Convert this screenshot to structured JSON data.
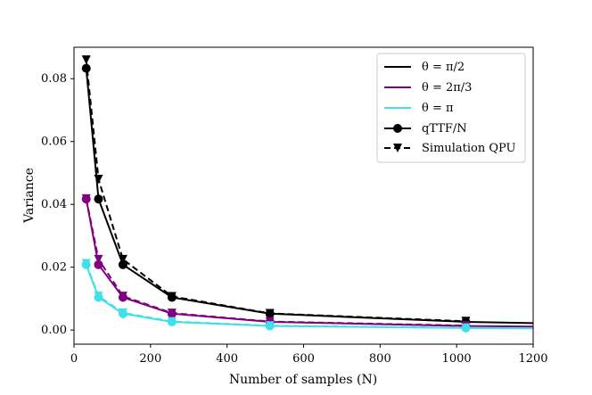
{
  "chart_data": {
    "type": "line",
    "xlabel": "Number of samples (N)",
    "ylabel": "Variance",
    "xlim": [
      0,
      1200
    ],
    "ylim": [
      -0.0045,
      0.09
    ],
    "xticks": [
      0,
      200,
      400,
      600,
      800,
      1000,
      1200
    ],
    "yticks": [
      0.0,
      0.02,
      0.04,
      0.06,
      0.08
    ],
    "xtick_labels": [
      "0",
      "200",
      "400",
      "600",
      "800",
      "1000",
      "1200"
    ],
    "ytick_labels": [
      "0.00",
      "0.02",
      "0.04",
      "0.06",
      "0.08"
    ],
    "grid": false,
    "legend_position": "top-right",
    "legend": [
      {
        "label": "θ = π/2",
        "style": "line",
        "color": "#000000"
      },
      {
        "label": "θ = 2π/3",
        "style": "line",
        "color": "#800080"
      },
      {
        "label": "θ = π",
        "style": "line",
        "color": "#40e0e8"
      },
      {
        "label": "qTTF/N",
        "style": "solid-circle",
        "color": "#000000"
      },
      {
        "label": "Simulation QPU",
        "style": "dashed-triangle",
        "color": "#000000"
      }
    ],
    "x": [
      32,
      64,
      128,
      256,
      512,
      1024,
      1200
    ],
    "series": [
      {
        "name": "θ = π/2",
        "kind": "qTTF/N",
        "color": "#000000",
        "dash": false,
        "marker": "circle",
        "values": [
          0.0833,
          0.0417,
          0.0208,
          0.0104,
          0.0052,
          0.0026,
          0.0022
        ]
      },
      {
        "name": "θ = π/2",
        "kind": "Simulation QPU",
        "color": "#000000",
        "dash": true,
        "marker": "triangle",
        "values": [
          0.086,
          0.048,
          0.0225,
          0.0107,
          0.0053,
          0.0028,
          null
        ]
      },
      {
        "name": "θ = 2π/3",
        "kind": "qTTF/N",
        "color": "#800080",
        "dash": false,
        "marker": "circle",
        "values": [
          0.0417,
          0.0208,
          0.0104,
          0.0052,
          0.0026,
          0.0013,
          0.0011
        ]
      },
      {
        "name": "θ = 2π/3",
        "kind": "Simulation QPU",
        "color": "#800080",
        "dash": true,
        "marker": "triangle",
        "values": [
          0.0418,
          0.0225,
          0.0108,
          0.0054,
          0.0027,
          0.0014,
          null
        ]
      },
      {
        "name": "θ = π",
        "kind": "qTTF/N",
        "color": "#40e0e8",
        "dash": false,
        "marker": "circle",
        "values": [
          0.0208,
          0.0104,
          0.0052,
          0.0026,
          0.0013,
          0.00065,
          0.00055
        ]
      },
      {
        "name": "θ = π",
        "kind": "Simulation QPU",
        "color": "#40e0e8",
        "dash": true,
        "marker": "triangle",
        "values": [
          0.0212,
          0.0108,
          0.0055,
          0.0027,
          0.0014,
          0.0007,
          null
        ]
      }
    ]
  }
}
